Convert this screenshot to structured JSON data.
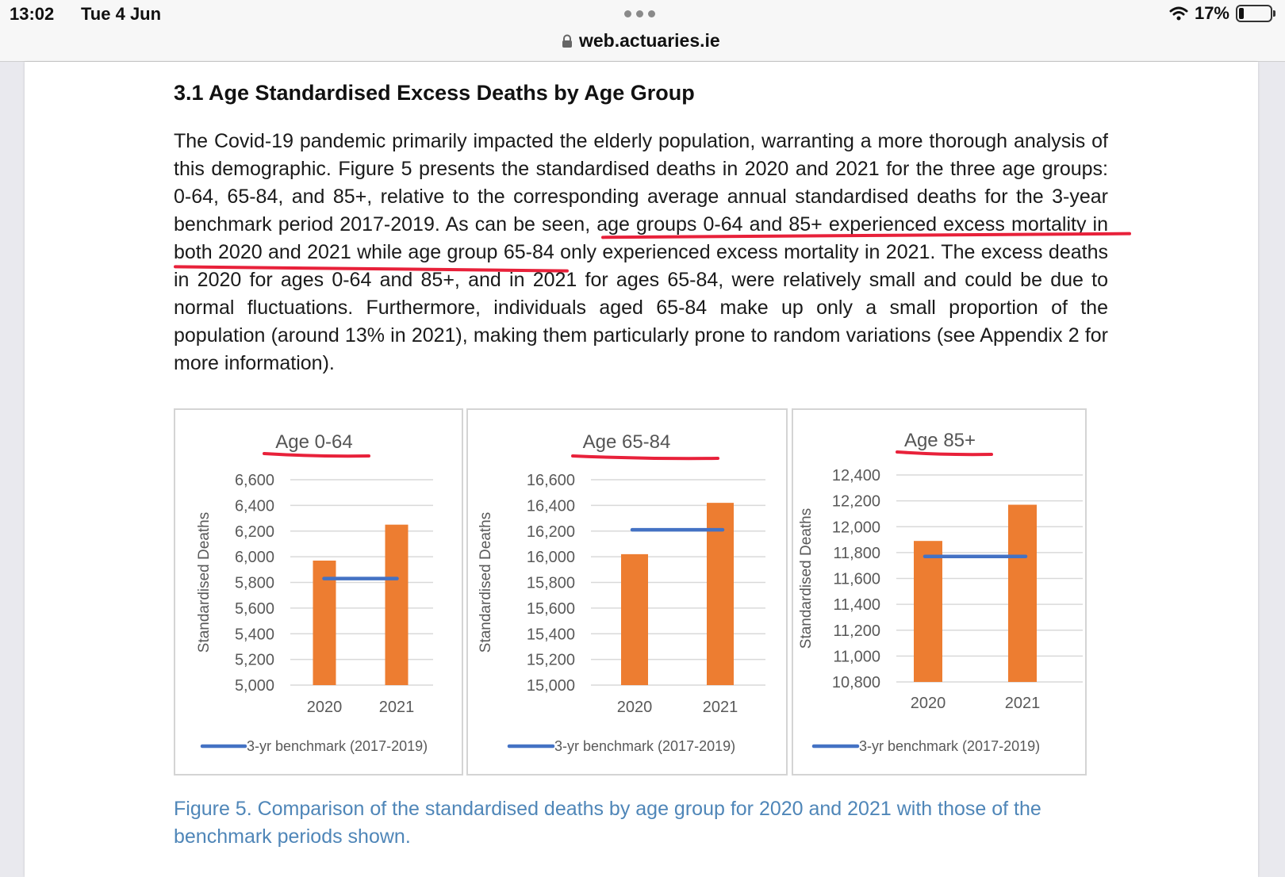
{
  "status_bar": {
    "time": "13:02",
    "date": "Tue 4 Jun",
    "url": "web.actuaries.ie",
    "battery": "17%",
    "battery_level": 0.17
  },
  "document": {
    "heading": "3.1 Age Standardised Excess Deaths by Age Group",
    "paragraph": "The Covid-19 pandemic primarily impacted the elderly population, warranting a more thorough analysis of this demographic. Figure 5 presents the standardised deaths in 2020 and 2021 for the three age groups: 0-64, 65-84, and 85+, relative to the corresponding average annual standardised deaths for the 3-year benchmark period 2017-2019. As can be seen, age groups 0-64 and 85+ experienced excess mortality in both 2020 and 2021 while age group 65-84 only experienced excess mortality in 2021. The excess deaths in 2020 for ages 0-64 and 85+, and in 2021 for ages 65-84, were relatively small and could be due to normal fluctuations. Furthermore, individuals aged 65-84 make up only a small proportion of the population (around 13% in 2021), making them particularly prone to random variations (see Appendix 2 for more information).",
    "caption": "Figure 5. Comparison of the standardised deaths by age group for 2020 and 2021 with those of the benchmark periods shown."
  },
  "colors": {
    "bar": "#ed7d31",
    "benchmark": "#4472c4",
    "annotation": "#e8213a",
    "caption": "#4f86b8",
    "gridline": "#d9d9d9"
  },
  "chart_data": [
    {
      "type": "bar",
      "title": "Age 0-64",
      "ylabel": "Standardised Deaths",
      "xlabel": "",
      "categories": [
        "2020",
        "2021"
      ],
      "values": [
        5970,
        6250
      ],
      "benchmark": {
        "name": "3-yr benchmark (2017-2019)",
        "value": 5830
      },
      "ylim": [
        5000,
        6600
      ],
      "yticks": [
        5000,
        5200,
        5400,
        5600,
        5800,
        6000,
        6200,
        6400,
        6600
      ],
      "ytick_labels": [
        "5,000",
        "5,200",
        "5,400",
        "5,600",
        "5,800",
        "6,000",
        "6,200",
        "6,400",
        "6,600"
      ],
      "grid": true,
      "legend": "bottom"
    },
    {
      "type": "bar",
      "title": "Age 65-84",
      "ylabel": "Standardised Deaths",
      "xlabel": "",
      "categories": [
        "2020",
        "2021"
      ],
      "values": [
        16020,
        16420
      ],
      "benchmark": {
        "name": "3-yr benchmark (2017-2019)",
        "value": 16210
      },
      "ylim": [
        15000,
        16600
      ],
      "yticks": [
        15000,
        15200,
        15400,
        15600,
        15800,
        16000,
        16200,
        16400,
        16600
      ],
      "ytick_labels": [
        "15,000",
        "15,200",
        "15,400",
        "15,600",
        "15,800",
        "16,000",
        "16,200",
        "16,400",
        "16,600"
      ],
      "grid": true,
      "legend": "bottom"
    },
    {
      "type": "bar",
      "title": "Age 85+",
      "ylabel": "Standardised Deaths",
      "xlabel": "",
      "categories": [
        "2020",
        "2021"
      ],
      "values": [
        11890,
        12170
      ],
      "benchmark": {
        "name": "3-yr benchmark (2017-2019)",
        "value": 11770
      },
      "ylim": [
        10800,
        12400
      ],
      "yticks": [
        10800,
        11000,
        11200,
        11400,
        11600,
        11800,
        12000,
        12200,
        12400
      ],
      "ytick_labels": [
        "10,800",
        "11,000",
        "11,200",
        "11,400",
        "11,600",
        "11,800",
        "12,000",
        "12,200",
        "12,400"
      ],
      "grid": true,
      "legend": "bottom"
    }
  ]
}
